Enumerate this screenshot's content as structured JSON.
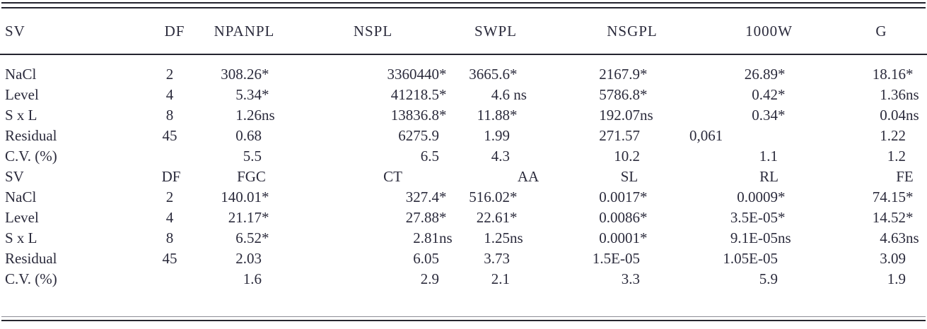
{
  "table": {
    "header1": [
      "SV",
      "DF",
      "NPANPL",
      "NSPL",
      "SWPL",
      "NSGPL",
      "1000W",
      "G"
    ],
    "header2": [
      "SV",
      "DF",
      "FGC",
      "CT",
      "AA",
      "SL",
      "RL",
      "FE"
    ],
    "section1_rows": [
      [
        "NaCl",
        "2",
        "308.26*",
        "3360440*",
        "3665.6*",
        "2167.9*",
        "26.89*",
        "18.16*"
      ],
      [
        "Level",
        "4",
        "5.34*",
        "41218.5*",
        "4.6 ns",
        "5786.8*",
        "0.42*",
        "1.36ns"
      ],
      [
        "S x L",
        "8",
        "1.26ns",
        "13836.8*",
        "11.88*",
        "192.07ns",
        "0.34*",
        "0.04ns"
      ],
      [
        "Residual",
        "45",
        "0.68",
        "6275.9",
        "1.99",
        "271.57",
        "0,061",
        "1.22"
      ],
      [
        "C.V. (%)",
        "",
        "5.5",
        "6.5",
        "4.3",
        "10.2",
        "1.1",
        "1.2"
      ]
    ],
    "section2_rows": [
      [
        "NaCl",
        "2",
        "140.01*",
        "327.4*",
        "516.02*",
        "0.0017*",
        "0.0009*",
        "74.15*"
      ],
      [
        "Level",
        "4",
        "21.17*",
        "27.88*",
        "22.61*",
        "0.0086*",
        "3.5E-05*",
        "14.52*"
      ],
      [
        "S x L",
        "8",
        "6.52*",
        "2.81ns",
        "1.25ns",
        "0.0001*",
        "9.1E-05ns",
        "4.63ns"
      ],
      [
        "Residual",
        "45",
        "2.03",
        "6.05",
        "3.73",
        "1.5E-05",
        "1.05E-05",
        "3.09"
      ],
      [
        "C.V. (%)",
        "",
        "1.6",
        "2.9",
        "2.1",
        "3.3",
        "5.9",
        "1.9"
      ]
    ],
    "significance_markers": {
      "asterisk": "*",
      "not_significant": "ns"
    },
    "colors": {
      "text": "#2b2b3c",
      "rule": "#23232e"
    }
  }
}
